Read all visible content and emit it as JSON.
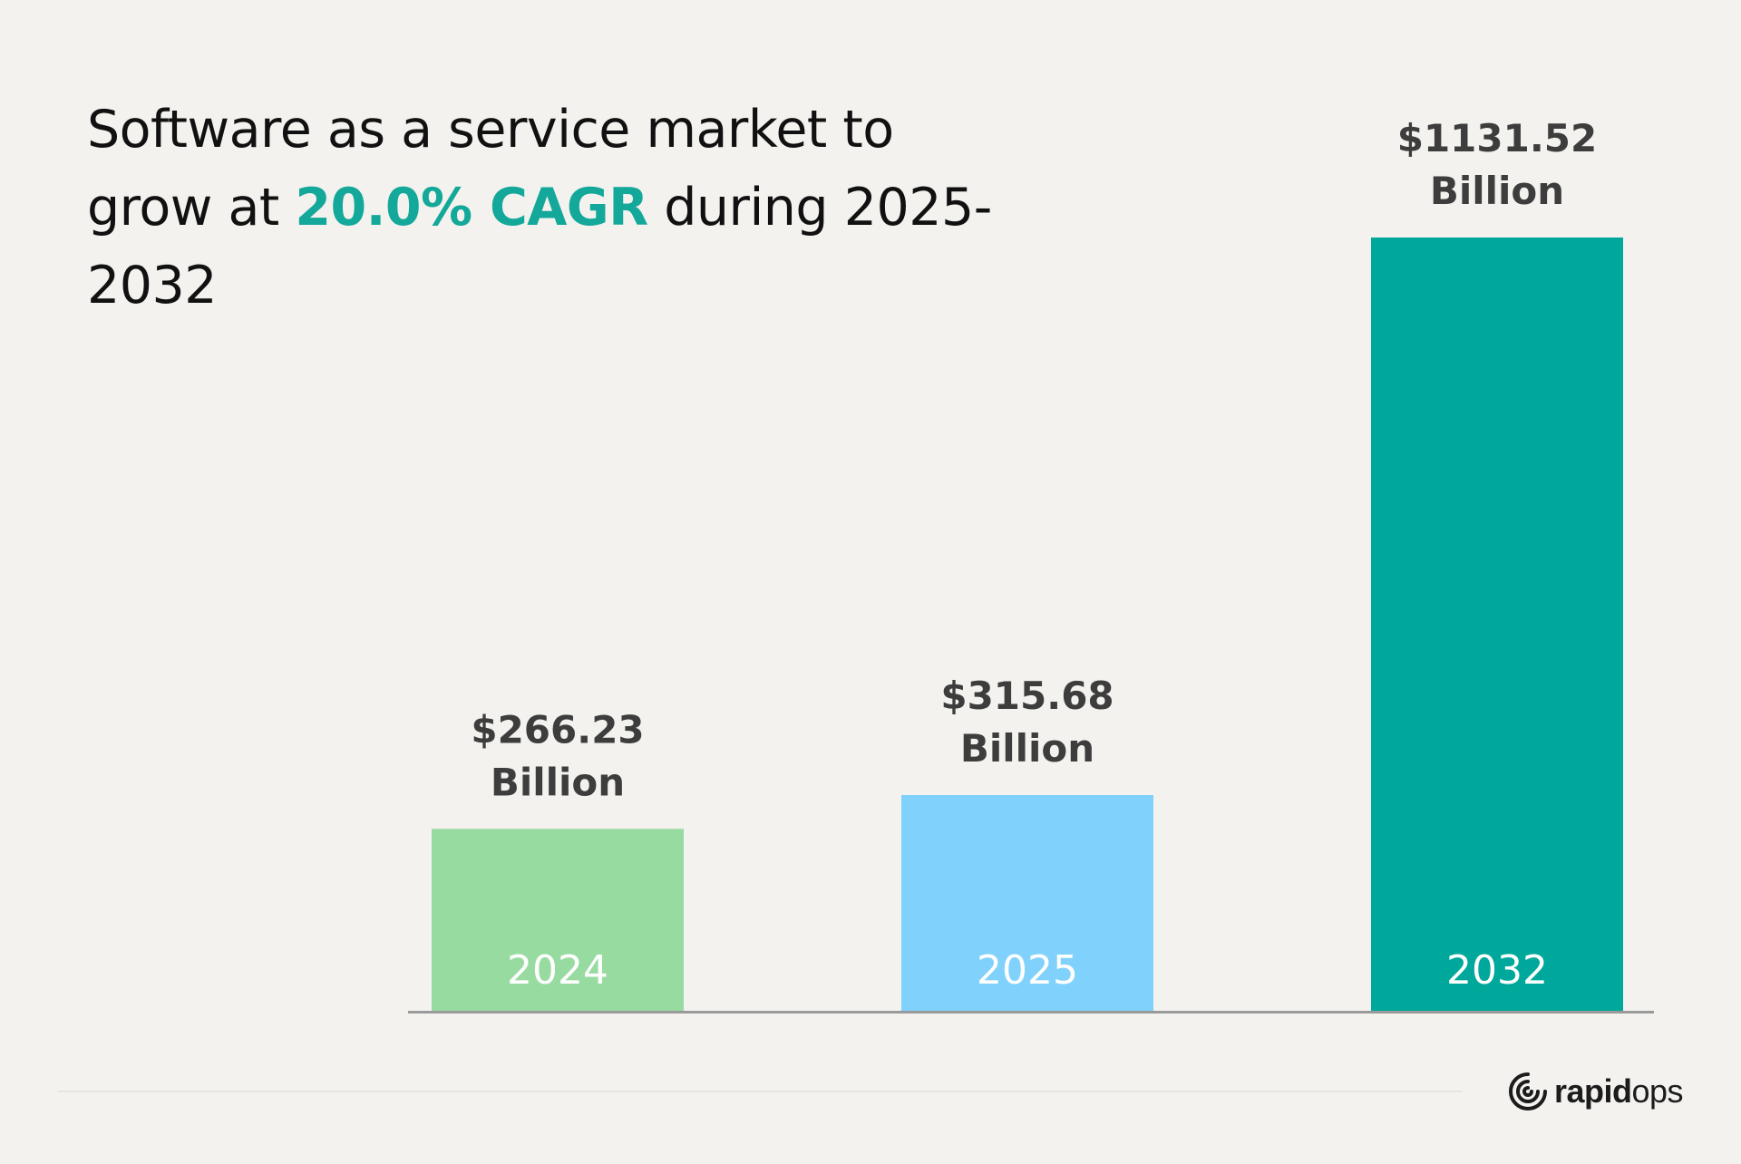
{
  "title": {
    "line_before": "Software as a service market to grow at ",
    "highlight": "20.0% CAGR",
    "line_after": " during 2025-2032"
  },
  "colors": {
    "background": "#f3f2ee",
    "accent": "#13a89a",
    "axis": "#9a9a9a"
  },
  "chart_data": {
    "type": "bar",
    "categories": [
      "2024",
      "2025",
      "2032"
    ],
    "values": [
      266.23,
      315.68,
      1131.52
    ],
    "value_labels": [
      [
        "$266.23",
        "Billion"
      ],
      [
        "$315.68",
        "Billion"
      ],
      [
        "$1131.52",
        "Billion"
      ]
    ],
    "bar_colors": [
      "#98dba0",
      "#80d1fb",
      "#00a89c"
    ],
    "unit": "Billion",
    "ylim": [
      0,
      1131.52
    ],
    "grid": false,
    "legend": false
  },
  "brand": {
    "logo_icon": "rapidops-swirl-icon",
    "name_bold": "rapid",
    "name_light": "ops"
  }
}
